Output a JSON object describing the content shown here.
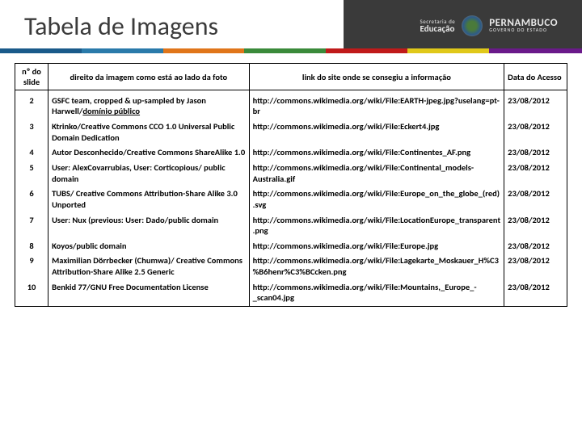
{
  "header": {
    "title": "Tabela de Imagens",
    "secretaria_top": "Secretaria de",
    "secretaria_bot": "Educação",
    "pe_top": "PERNAMBUCO",
    "pe_bot": "GOVERNO DO ESTADO"
  },
  "stripe_colors": [
    "#1a5a8a",
    "#2a7aaa",
    "#e0751a",
    "#3a8a3a",
    "#c01a1a",
    "#e0c81a",
    "#6a1a8a"
  ],
  "table": {
    "columns": [
      "nº do slide",
      "direito da imagem como está ao lado da foto",
      "link do site onde se consegiu a informação",
      "Data do Acesso"
    ],
    "rows": [
      {
        "n": "2",
        "credit_html": "GSFC team, cropped & up-sampled by Jason Harwell/<u>domínio público</u>",
        "link": "http://commons.wikimedia.org/wiki/File:EARTH-jpeg.jpg?uselang=pt-br",
        "date": "23/08/2012"
      },
      {
        "n": "3",
        "credit_html": "Ktrinko/Creative Commons CCO 1.0 Universal Public Domain Dedication",
        "link": "http://commons.wikimedia.org/wiki/File:Eckert4.jpg",
        "date": "23/08/2012"
      },
      {
        "n": "4",
        "credit_html": "Autor Desconhecido/Creative Commons ShareAlike 1.0",
        "link": "http://commons.wikimedia.org/wiki/File:Continentes_AF.png",
        "date": "23/08/2012"
      },
      {
        "n": "5",
        "credit_html": "User: AlexCovarrubias, User: Corticopious/ public domain",
        "link": "http://commons.wikimedia.org/wiki/File:Continental_models-Australia.gif",
        "date": "23/08/2012"
      },
      {
        "n": "6",
        "credit_html": "TUBS/ Creative Commons Attribution-Share Alike 3.0 Unported",
        "link": "http://commons.wikimedia.org/wiki/File:Europe_on_the_globe_(red).svg",
        "date": "23/08/2012"
      },
      {
        "n": "7",
        "credit_html": "User: Nux (previous: User: Dado/public domain",
        "link": "http://commons.wikimedia.org/wiki/File:LocationEurope_transparent.png",
        "date": "23/08/2012"
      },
      {
        "n": "8",
        "credit_html": "Koyos/public domain",
        "link": "http://commons.wikimedia.org/wiki/File:Europe.jpg",
        "date": "23/08/2012"
      },
      {
        "n": "9",
        "credit_html": "Maximilian Dörrbecker (Chumwa)/ Creative Commons Attribution-Share Alike 2.5 Generic",
        "link": "http://commons.wikimedia.org/wiki/File:Lagekarte_Moskauer_H%C3%B6henr%C3%BCcken.png",
        "date": "23/08/2012"
      },
      {
        "n": "10",
        "credit_html": "Benkid 77/GNU Free Documentation License",
        "link": "http://commons.wikimedia.org/wiki/File:Mountains,_Europe_-_scan04.jpg",
        "date": "23/08/2012"
      }
    ]
  }
}
